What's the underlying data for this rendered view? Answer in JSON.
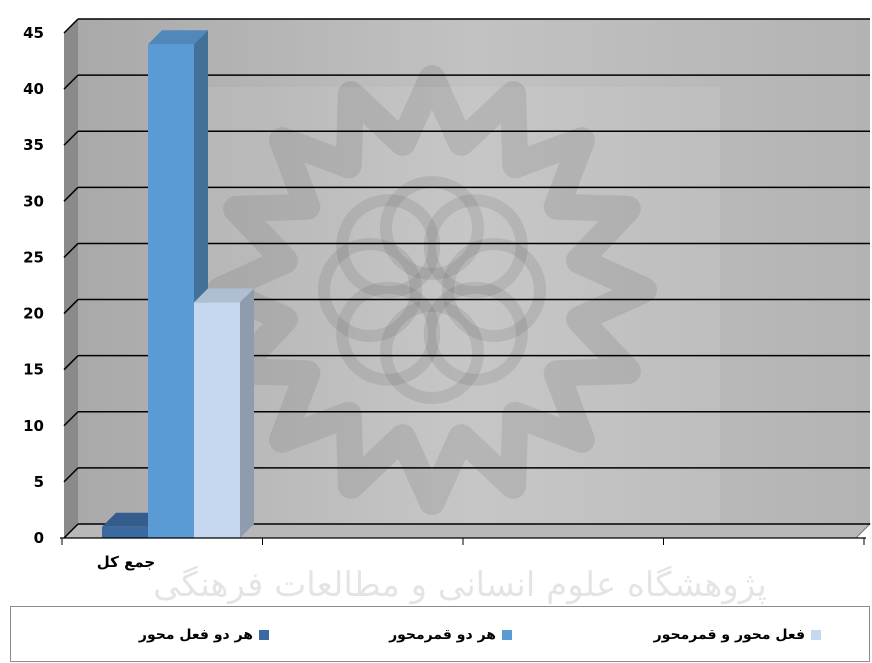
{
  "chart_data": {
    "type": "bar",
    "categories": [
      "جمع کل",
      "",
      "",
      ""
    ],
    "series": [
      {
        "name": "هر دو فعل محور",
        "values": [
          1,
          0,
          0,
          0
        ]
      },
      {
        "name": "هر دو قمرمحور",
        "values": [
          44,
          0,
          0,
          0
        ]
      },
      {
        "name": "فعل محور و قمرمحور",
        "values": [
          21,
          0,
          0,
          0
        ]
      }
    ],
    "ylim": [
      0,
      45
    ],
    "yticks": [
      "0",
      "5",
      "10",
      "15",
      "20",
      "25",
      "30",
      "35",
      "40",
      "45"
    ],
    "grid": true,
    "legend_position": "bottom",
    "colors": [
      "#3b6aa0",
      "#5b9bd5",
      "#c6d8f0"
    ],
    "plot_background": "#bdbdbd"
  },
  "watermark": {
    "text": "پژوهشگاه علوم انسانی و مطالعات فرهنگی"
  }
}
